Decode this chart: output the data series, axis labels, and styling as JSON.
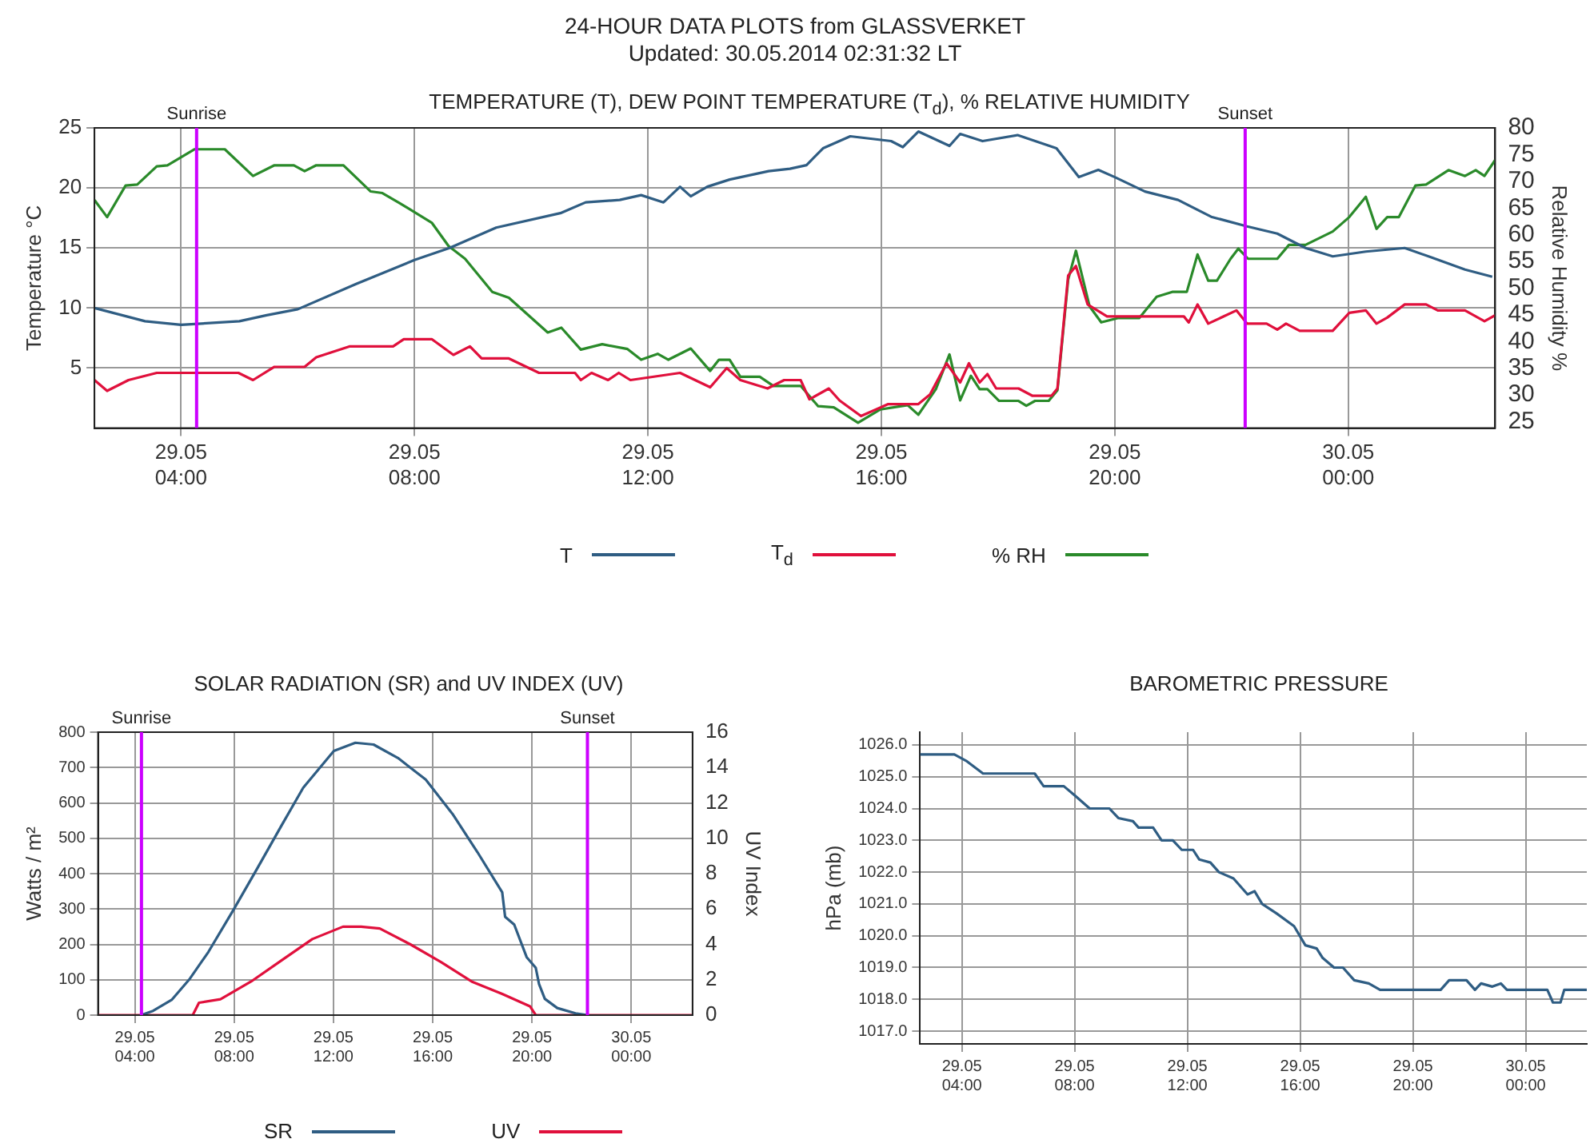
{
  "chart_data": [
    {
      "type": "line",
      "title": "TEMPERATURE (T), DEW POINT TEMPERATURE (T$_{d}$), % RELATIVE HUMIDITY",
      "annotations": [
        "24-HOUR DATA PLOTS from GLASSVERKET",
        "Updated: 30.05.2014 02:31:32 LT"
      ],
      "ylabel": "Temperature °C",
      "y2label": "Relative Humidity %",
      "xlim": [
        "2014-05-29T02:31",
        "2014-05-30T02:31"
      ],
      "xticks": [
        {
          "value": "2014-05-29T04:00",
          "label": "29.05 04:00"
        },
        {
          "value": "2014-05-29T08:00",
          "label": "29.05 08:00"
        },
        {
          "value": "2014-05-29T12:00",
          "label": "29.05 12:00"
        },
        {
          "value": "2014-05-29T16:00",
          "label": "29.05 16:00"
        },
        {
          "value": "2014-05-29T20:00",
          "label": "29.05 20:00"
        },
        {
          "value": "2014-05-30T00:00",
          "label": "30.05 00:00"
        }
      ],
      "ylim": [
        0,
        25
      ],
      "yticks": [
        5,
        10,
        15,
        20,
        25
      ],
      "y2lim": [
        23.8,
        80
      ],
      "y2ticks": [
        25,
        30,
        35,
        40,
        45,
        50,
        55,
        60,
        65,
        70,
        75,
        80
      ],
      "grid": true,
      "legend": "bottom",
      "marker": "none",
      "line_style": "solid",
      "ref_lines": [
        {
          "axis": "x",
          "value": "2014-05-29T04:16",
          "label": "Sunrise",
          "color": "#cc00ff"
        },
        {
          "axis": "x",
          "value": "2014-05-29T22:14",
          "label": "Sunset",
          "color": "#cc00ff"
        }
      ],
      "series": [
        {
          "name": "T",
          "color": "#2f5d83",
          "x": [
            "2014-05-29T02:31",
            "2014-05-29T03:23",
            "2014-05-29T04:00",
            "2014-05-29T05:00",
            "2014-05-29T05:28",
            "2014-05-29T06:00",
            "2014-05-29T07:00",
            "2014-05-29T08:00",
            "2014-05-29T08:36",
            "2014-05-29T09:24",
            "2014-05-29T10:30",
            "2014-05-29T10:56",
            "2014-05-29T11:31",
            "2014-05-29T11:53",
            "2014-05-29T12:16",
            "2014-05-29T12:33",
            "2014-05-29T12:44",
            "2014-05-29T13:01",
            "2014-05-29T13:24",
            "2014-05-29T14:04",
            "2014-05-29T14:26",
            "2014-05-29T14:43",
            "2014-05-29T15:00",
            "2014-05-29T15:28",
            "2014-05-29T16:10",
            "2014-05-29T16:22",
            "2014-05-29T16:38",
            "2014-05-29T17:10",
            "2014-05-29T17:21",
            "2014-05-29T17:44",
            "2014-05-29T18:20",
            "2014-05-29T19:00",
            "2014-05-29T19:23",
            "2014-05-29T19:43",
            "2014-05-29T20:00",
            "2014-05-29T20:31",
            "2014-05-29T21:05",
            "2014-05-29T21:39",
            "2014-05-29T22:16",
            "2014-05-29T22:47",
            "2014-05-29T23:16",
            "2014-05-29T23:44",
            "2014-05-30T00:18",
            "2014-05-30T00:58",
            "2014-05-30T01:26",
            "2014-05-30T02:00",
            "2014-05-30T02:28"
          ],
          "values": [
            10.0,
            8.9,
            8.6,
            8.9,
            9.4,
            9.9,
            12.0,
            14.0,
            15.0,
            16.7,
            17.9,
            18.8,
            19.0,
            19.4,
            18.8,
            20.1,
            19.3,
            20.1,
            20.7,
            21.4,
            21.6,
            21.9,
            23.3,
            24.3,
            23.9,
            23.4,
            24.7,
            23.5,
            24.5,
            23.9,
            24.4,
            23.3,
            20.9,
            21.5,
            20.9,
            19.7,
            19.0,
            17.6,
            16.8,
            16.2,
            15.0,
            14.3,
            14.7,
            15.0,
            14.2,
            13.2,
            12.6
          ]
        },
        {
          "name": "T$_{d}$",
          "color": "#e0103c",
          "x": [
            "2014-05-29T02:31",
            "2014-05-29T02:44",
            "2014-05-29T03:06",
            "2014-05-29T03:35",
            "2014-05-29T04:59",
            "2014-05-29T05:14",
            "2014-05-29T05:36",
            "2014-05-29T06:07",
            "2014-05-29T06:19",
            "2014-05-29T06:53",
            "2014-05-29T07:38",
            "2014-05-29T07:49",
            "2014-05-29T08:18",
            "2014-05-29T08:40",
            "2014-05-29T08:57",
            "2014-05-29T09:09",
            "2014-05-29T09:37",
            "2014-05-29T10:08",
            "2014-05-29T10:45",
            "2014-05-29T10:51",
            "2014-05-29T11:02",
            "2014-05-29T11:19",
            "2014-05-29T11:30",
            "2014-05-29T11:42",
            "2014-05-29T12:33",
            "2014-05-29T13:04",
            "2014-05-29T13:21",
            "2014-05-29T13:35",
            "2014-05-29T14:03",
            "2014-05-29T14:20",
            "2014-05-29T14:37",
            "2014-05-29T14:46",
            "2014-05-29T15:06",
            "2014-05-29T15:17",
            "2014-05-29T15:39",
            "2014-05-29T16:07",
            "2014-05-29T16:38",
            "2014-05-29T16:50",
            "2014-05-29T17:07",
            "2014-05-29T17:21",
            "2014-05-29T17:30",
            "2014-05-29T17:41",
            "2014-05-29T17:49",
            "2014-05-29T17:58",
            "2014-05-29T18:21",
            "2014-05-29T18:35",
            "2014-05-29T18:55",
            "2014-05-29T19:01",
            "2014-05-29T19:12",
            "2014-05-29T19:20",
            "2014-05-29T19:32",
            "2014-05-29T19:52",
            "2014-05-29T21:11",
            "2014-05-29T21:16",
            "2014-05-29T21:25",
            "2014-05-29T21:36",
            "2014-05-29T22:05",
            "2014-05-29T22:16",
            "2014-05-29T22:36",
            "2014-05-29T22:47",
            "2014-05-29T22:56",
            "2014-05-29T23:10",
            "2014-05-29T23:44",
            "2014-05-30T00:01",
            "2014-05-30T00:18",
            "2014-05-30T00:29",
            "2014-05-30T00:40",
            "2014-05-30T00:58",
            "2014-05-30T01:20",
            "2014-05-30T01:32",
            "2014-05-30T02:00",
            "2014-05-30T02:20",
            "2014-05-30T02:31"
          ],
          "values": [
            4.0,
            3.1,
            4.0,
            4.6,
            4.6,
            4.0,
            5.1,
            5.1,
            5.9,
            6.8,
            6.8,
            7.4,
            7.4,
            6.1,
            6.8,
            5.8,
            5.8,
            4.6,
            4.6,
            4.0,
            4.6,
            4.0,
            4.6,
            4.0,
            4.6,
            3.4,
            5.0,
            4.0,
            3.3,
            4.0,
            4.0,
            2.4,
            3.3,
            2.3,
            1.0,
            2.0,
            2.0,
            2.8,
            5.4,
            3.8,
            5.4,
            3.8,
            4.5,
            3.3,
            3.3,
            2.7,
            2.7,
            3.3,
            12.7,
            13.5,
            10.3,
            9.3,
            9.3,
            8.8,
            10.3,
            8.7,
            9.8,
            8.7,
            8.7,
            8.2,
            8.7,
            8.1,
            8.1,
            9.6,
            9.8,
            8.7,
            9.2,
            10.3,
            10.3,
            9.8,
            9.8,
            8.9,
            9.4
          ]
        },
        {
          "name": "% RH",
          "color": "#2a8a2a",
          "axis": "y2",
          "x": [
            "2014-05-29T02:31",
            "2014-05-29T02:44",
            "2014-05-29T03:03",
            "2014-05-29T03:15",
            "2014-05-29T03:35",
            "2014-05-29T03:46",
            "2014-05-29T04:14",
            "2014-05-29T04:45",
            "2014-05-29T05:14",
            "2014-05-29T05:36",
            "2014-05-29T05:56",
            "2014-05-29T06:07",
            "2014-05-29T06:19",
            "2014-05-29T06:47",
            "2014-05-29T07:15",
            "2014-05-29T07:27",
            "2014-05-29T07:44",
            "2014-05-29T08:18",
            "2014-05-29T08:35",
            "2014-05-29T08:52",
            "2014-05-29T09:20",
            "2014-05-29T09:37",
            "2014-05-29T10:17",
            "2014-05-29T10:31",
            "2014-05-29T10:51",
            "2014-05-29T11:13",
            "2014-05-29T11:39",
            "2014-05-29T11:53",
            "2014-05-29T12:10",
            "2014-05-29T12:21",
            "2014-05-29T12:44",
            "2014-05-29T13:04",
            "2014-05-29T13:13",
            "2014-05-29T13:24",
            "2014-05-29T13:35",
            "2014-05-29T13:55",
            "2014-05-29T14:09",
            "2014-05-29T14:37",
            "2014-05-29T14:55",
            "2014-05-29T15:11",
            "2014-05-29T15:36",
            "2014-05-29T15:59",
            "2014-05-29T16:27",
            "2014-05-29T16:38",
            "2014-05-29T16:56",
            "2014-05-29T17:10",
            "2014-05-29T17:21",
            "2014-05-29T17:32",
            "2014-05-29T17:41",
            "2014-05-29T17:49",
            "2014-05-29T18:01",
            "2014-05-29T18:21",
            "2014-05-29T18:29",
            "2014-05-29T18:38",
            "2014-05-29T18:52",
            "2014-05-29T19:01",
            "2014-05-29T19:12",
            "2014-05-29T19:20",
            "2014-05-29T19:34",
            "2014-05-29T19:46",
            "2014-05-29T20:03",
            "2014-05-29T20:25",
            "2014-05-29T20:43",
            "2014-05-29T20:59",
            "2014-05-29T21:14",
            "2014-05-29T21:25",
            "2014-05-29T21:36",
            "2014-05-29T21:45",
            "2014-05-29T21:59",
            "2014-05-29T22:07",
            "2014-05-29T22:17",
            "2014-05-29T22:47",
            "2014-05-29T22:59",
            "2014-05-29T23:16",
            "2014-05-29T23:44",
            "2014-05-30T00:01",
            "2014-05-30T00:18",
            "2014-05-30T00:29",
            "2014-05-30T00:40",
            "2014-05-30T00:52",
            "2014-05-30T01:09",
            "2014-05-30T01:20",
            "2014-05-30T01:43",
            "2014-05-30T02:00",
            "2014-05-30T02:11",
            "2014-05-30T02:20",
            "2014-05-30T02:31"
          ],
          "values": [
            66.5,
            63.3,
            69.2,
            69.4,
            72.8,
            73.0,
            76.0,
            76.0,
            71.0,
            73.0,
            73.0,
            71.9,
            73.0,
            73.0,
            68.1,
            67.8,
            66.0,
            62.2,
            57.9,
            55.5,
            49.3,
            48.2,
            41.7,
            42.6,
            38.5,
            39.5,
            38.6,
            36.6,
            37.7,
            36.6,
            38.7,
            34.5,
            36.6,
            36.6,
            33.4,
            33.4,
            31.7,
            31.7,
            27.9,
            27.7,
            24.8,
            27.3,
            28.1,
            26.3,
            31.1,
            37.6,
            29.0,
            33.6,
            31.1,
            31.1,
            28.9,
            28.9,
            28.0,
            28.9,
            28.9,
            30.9,
            51.6,
            57.0,
            46.6,
            43.6,
            44.4,
            44.4,
            48.4,
            49.3,
            49.3,
            56.3,
            51.4,
            51.4,
            55.5,
            57.4,
            55.5,
            55.5,
            58.1,
            58.1,
            60.6,
            63.3,
            67.1,
            61.1,
            63.3,
            63.3,
            69.2,
            69.4,
            72.1,
            71.0,
            72.1,
            71.0,
            74.0
          ]
        }
      ]
    },
    {
      "type": "line",
      "title": "SOLAR RADIATION (SR) and UV INDEX (UV)",
      "ylabel": "Watts / m²",
      "y2label": "UV Index",
      "xlim": [
        "2014-05-29T02:31",
        "2014-05-30T02:28"
      ],
      "xticks": [
        {
          "value": "2014-05-29T04:00",
          "label": "29.05 04:00"
        },
        {
          "value": "2014-05-29T08:00",
          "label": "29.05 08:00"
        },
        {
          "value": "2014-05-29T12:00",
          "label": "29.05 12:00"
        },
        {
          "value": "2014-05-29T16:00",
          "label": "29.05 16:00"
        },
        {
          "value": "2014-05-29T20:00",
          "label": "29.05 20:00"
        },
        {
          "value": "2014-05-30T00:00",
          "label": "30.05 00:00"
        }
      ],
      "ylim": [
        0,
        800
      ],
      "yticks": [
        0,
        100,
        200,
        300,
        400,
        500,
        600,
        700,
        800
      ],
      "y2lim": [
        0,
        16
      ],
      "y2ticks": [
        0,
        2,
        4,
        6,
        8,
        10,
        12,
        14,
        16
      ],
      "grid": true,
      "legend": "bottom",
      "marker": "none",
      "line_style": "solid",
      "ref_lines": [
        {
          "axis": "x",
          "value": "2014-05-29T04:16",
          "label": "Sunrise",
          "color": "#cc00ff"
        },
        {
          "axis": "x",
          "value": "2014-05-29T22:14",
          "label": "Sunset",
          "color": "#cc00ff"
        }
      ],
      "series": [
        {
          "name": "SR",
          "color": "#2f5d83",
          "x": [
            "2014-05-29T04:15",
            "2014-05-29T04:44",
            "2014-05-29T05:29",
            "2014-05-29T06:13",
            "2014-05-29T06:58",
            "2014-05-29T08:00",
            "2014-05-29T08:56",
            "2014-05-29T09:55",
            "2014-05-29T10:47",
            "2014-05-29T12:01",
            "2014-05-29T12:53",
            "2014-05-29T13:37",
            "2014-05-29T14:36",
            "2014-05-29T15:43",
            "2014-05-29T16:49",
            "2014-05-29T17:48",
            "2014-05-29T18:48",
            "2014-05-29T18:55",
            "2014-05-29T19:17",
            "2014-05-29T19:47",
            "2014-05-29T20:09",
            "2014-05-29T20:17",
            "2014-05-29T20:31",
            "2014-05-29T21:01",
            "2014-05-29T21:45",
            "2014-05-29T22:15"
          ],
          "values": [
            0,
            12,
            43,
            103,
            179,
            301,
            415,
            537,
            643,
            747,
            770,
            765,
            727,
            666,
            567,
            461,
            347,
            278,
            256,
            164,
            134,
            88,
            46,
            20,
            5,
            0
          ]
        },
        {
          "name": "UV",
          "color": "#e0103c",
          "axis": "y2",
          "x": [
            "2014-05-29T02:31",
            "2014-05-29T06:20",
            "2014-05-29T06:35",
            "2014-05-29T07:27",
            "2014-05-29T08:41",
            "2014-05-29T09:55",
            "2014-05-29T11:09",
            "2014-05-29T12:23",
            "2014-05-29T13:07",
            "2014-05-29T13:52",
            "2014-05-29T15:06",
            "2014-05-29T16:20",
            "2014-05-29T17:34",
            "2014-05-29T18:48",
            "2014-05-29T19:55",
            "2014-05-29T20:09",
            "2014-05-30T02:26"
          ],
          "values": [
            0,
            0,
            0.7,
            0.9,
            1.9,
            3.1,
            4.3,
            5.0,
            5.0,
            4.9,
            4.0,
            3.0,
            1.9,
            1.2,
            0.5,
            0,
            0
          ]
        }
      ]
    },
    {
      "type": "line",
      "title": "BAROMETRIC PRESSURE",
      "ylabel": "hPa (mb)",
      "xlim": [
        "2014-05-29T02:31",
        "2014-05-30T02:10"
      ],
      "xticks": [
        {
          "value": "2014-05-29T04:00",
          "label": "29.05 04:00"
        },
        {
          "value": "2014-05-29T08:00",
          "label": "29.05 08:00"
        },
        {
          "value": "2014-05-29T12:00",
          "label": "29.05 12:00"
        },
        {
          "value": "2014-05-29T16:00",
          "label": "29.05 16:00"
        },
        {
          "value": "2014-05-29T20:00",
          "label": "29.05 20:00"
        },
        {
          "value": "2014-05-30T00:00",
          "label": "30.05 00:00"
        }
      ],
      "ylim": [
        1016.6,
        1026.4
      ],
      "yticks": [
        {
          "value": 1017,
          "label": "1017.0"
        },
        {
          "value": 1018,
          "label": "1018.0"
        },
        {
          "value": 1019,
          "label": "1019.0"
        },
        {
          "value": 1020,
          "label": "1020.0"
        },
        {
          "value": 1021,
          "label": "1021.0"
        },
        {
          "value": 1022,
          "label": "1022.0"
        },
        {
          "value": 1023,
          "label": "1023.0"
        },
        {
          "value": 1024,
          "label": "1024.0"
        },
        {
          "value": 1025,
          "label": "1025.0"
        },
        {
          "value": 1026,
          "label": "1026.0"
        }
      ],
      "grid": true,
      "marker": "none",
      "line_style": "solid",
      "series": [
        {
          "color": "#2f5d83",
          "x": [
            "2014-05-29T02:31",
            "2014-05-29T03:44",
            "2014-05-29T04:09",
            "2014-05-29T04:45",
            "2014-05-29T06:35",
            "2014-05-29T06:54",
            "2014-05-29T07:37",
            "2014-05-29T08:01",
            "2014-05-29T08:32",
            "2014-05-29T09:14",
            "2014-05-29T09:33",
            "2014-05-29T10:04",
            "2014-05-29T10:16",
            "2014-05-29T10:47",
            "2014-05-29T11:05",
            "2014-05-29T11:29",
            "2014-05-29T11:48",
            "2014-05-29T12:12",
            "2014-05-29T12:25",
            "2014-05-29T12:49",
            "2014-05-29T13:07",
            "2014-05-29T13:38",
            "2014-05-29T14:08",
            "2014-05-29T14:23",
            "2014-05-29T14:39",
            "2014-05-29T15:10",
            "2014-05-29T15:47",
            "2014-05-29T16:11",
            "2014-05-29T16:35",
            "2014-05-29T16:48",
            "2014-05-29T17:12",
            "2014-05-29T17:31",
            "2014-05-29T17:55",
            "2014-05-29T18:26",
            "2014-05-29T18:50",
            "2014-05-29T20:59",
            "2014-05-29T21:17",
            "2014-05-29T21:54",
            "2014-05-29T22:12",
            "2014-05-29T22:25",
            "2014-05-29T22:49",
            "2014-05-29T23:07",
            "2014-05-29T23:20",
            "2014-05-30T00:14",
            "2014-05-30T00:46",
            "2014-05-30T00:58",
            "2014-05-30T01:14",
            "2014-05-30T01:22",
            "2014-05-30T02:10"
          ],
          "values": [
            1025.7,
            1025.7,
            1025.5,
            1025.1,
            1025.1,
            1024.7,
            1024.7,
            1024.4,
            1024.0,
            1024.0,
            1023.7,
            1023.6,
            1023.4,
            1023.4,
            1023.0,
            1023.0,
            1022.7,
            1022.7,
            1022.4,
            1022.3,
            1022.0,
            1021.8,
            1021.3,
            1021.4,
            1021.0,
            1020.7,
            1020.3,
            1019.7,
            1019.6,
            1019.3,
            1019.0,
            1019.0,
            1018.6,
            1018.5,
            1018.3,
            1018.3,
            1018.6,
            1018.6,
            1018.3,
            1018.5,
            1018.4,
            1018.5,
            1018.3,
            1018.3,
            1018.3,
            1017.9,
            1017.9,
            1018.3,
            1018.3
          ]
        }
      ]
    }
  ]
}
